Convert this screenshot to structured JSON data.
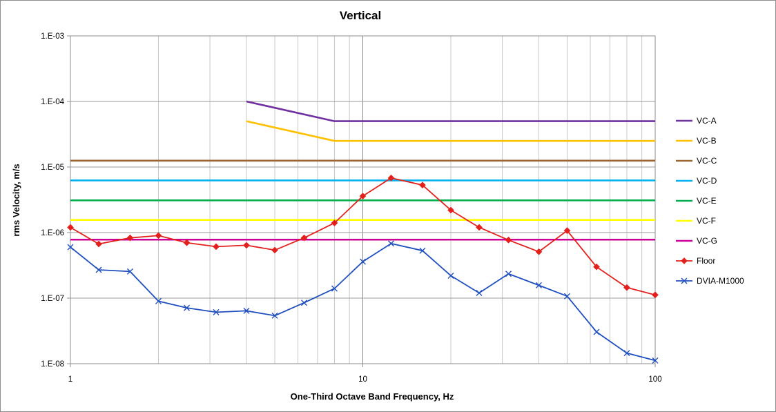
{
  "chart_data": {
    "type": "line",
    "title": "Vertical",
    "xlabel": "One-Third Octave Band Frequency, Hz",
    "ylabel": "rms Velocity, m/s",
    "xscale": "log",
    "yscale": "log",
    "xlim": [
      1,
      100
    ],
    "ylim": [
      1e-08,
      0.001
    ],
    "x_ticks": [
      1,
      10,
      100
    ],
    "x_tick_labels": [
      "1",
      "10",
      "100"
    ],
    "y_ticks": [
      1e-08,
      1e-07,
      1e-06,
      1e-05,
      0.0001,
      0.001
    ],
    "y_tick_labels": [
      "1.E-08",
      "1.E-07",
      "1.E-06",
      "1.E-05",
      "1.E-04",
      "1.E-03"
    ],
    "grid": true,
    "legend_position": "right",
    "series": [
      {
        "name": "VC-A",
        "color": "#7030a0",
        "marker": "none",
        "x": [
          4,
          8,
          100
        ],
        "y": [
          0.0001,
          5e-05,
          5e-05
        ]
      },
      {
        "name": "VC-B",
        "color": "#ffc000",
        "marker": "none",
        "x": [
          4,
          8,
          100
        ],
        "y": [
          5e-05,
          2.5e-05,
          2.5e-05
        ]
      },
      {
        "name": "VC-C",
        "color": "#996633",
        "marker": "none",
        "x": [
          1,
          100
        ],
        "y": [
          1.25e-05,
          1.25e-05
        ]
      },
      {
        "name": "VC-D",
        "color": "#00b0f0",
        "marker": "none",
        "x": [
          1,
          100
        ],
        "y": [
          6.25e-06,
          6.25e-06
        ]
      },
      {
        "name": "VC-E",
        "color": "#00b050",
        "marker": "none",
        "x": [
          1,
          100
        ],
        "y": [
          3.1e-06,
          3.1e-06
        ]
      },
      {
        "name": "VC-F",
        "color": "#ffff00",
        "marker": "none",
        "x": [
          1,
          100
        ],
        "y": [
          1.56e-06,
          1.56e-06
        ]
      },
      {
        "name": "VC-G",
        "color": "#cc0099",
        "marker": "none",
        "x": [
          1,
          100
        ],
        "y": [
          7.8e-07,
          7.8e-07
        ]
      },
      {
        "name": "Floor",
        "color": "#e3201b",
        "marker": "diamond",
        "x": [
          1,
          1.25,
          1.6,
          2,
          2.5,
          3.15,
          4,
          5,
          6.3,
          8,
          10,
          12.5,
          16,
          20,
          25,
          31.5,
          40,
          50,
          63,
          80,
          100
        ],
        "y": [
          1.2e-06,
          6.7e-07,
          8.3e-07,
          9e-07,
          7e-07,
          6.1e-07,
          6.4e-07,
          5.4e-07,
          8.3e-07,
          1.4e-06,
          3.6e-06,
          6.8e-06,
          5.3e-06,
          2.2e-06,
          1.2e-06,
          7.7e-07,
          5.1e-07,
          1.07e-06,
          3e-07,
          1.45e-07,
          1.12e-07
        ]
      },
      {
        "name": "DVIA-M1000",
        "color": "#1f4fbf",
        "marker": "x",
        "x": [
          1,
          1.25,
          1.6,
          2,
          2.5,
          3.15,
          4,
          5,
          6.3,
          8,
          10,
          12.5,
          16,
          20,
          25,
          31.5,
          40,
          50,
          63,
          80,
          100
        ],
        "y": [
          6e-07,
          2.7e-07,
          2.55e-07,
          9e-08,
          7.1e-08,
          6.1e-08,
          6.4e-08,
          5.4e-08,
          8.5e-08,
          1.4e-07,
          3.6e-07,
          6.8e-07,
          5.3e-07,
          2.2e-07,
          1.2e-07,
          2.35e-07,
          1.57e-07,
          1.07e-07,
          3.05e-08,
          1.45e-08,
          1.12e-08
        ]
      }
    ]
  }
}
